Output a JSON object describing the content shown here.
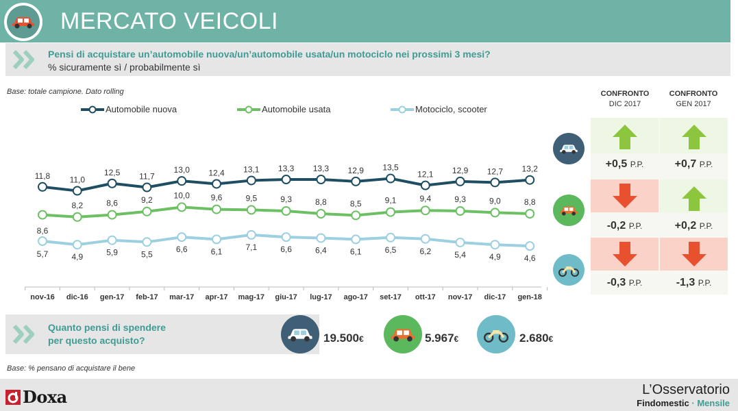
{
  "header": {
    "title": "MERCATO VEICOLI",
    "icon": "car-icon"
  },
  "question": {
    "text": "Pensi di acquistare un’automobile nuova/un’automobile usata/un motociclo nei prossimi 3 mesi?",
    "subtitle": "% sicuramente sì / probabilmente sì"
  },
  "base_note": "Base: totale campione. Dato rolling",
  "legend": [
    "Automobile nuova",
    "Automobile usata",
    "Motociclo, scooter"
  ],
  "colors": {
    "header": "#6fb3a7",
    "accent_text": "#3f9b93",
    "nuova": "#1f4e63",
    "usata": "#6cc063",
    "moto": "#9ccfe0",
    "up": "#8cc63f",
    "down": "#e8512f",
    "up_bg": "#eef6e4",
    "down_bg": "#fad2c8"
  },
  "chart_data": {
    "type": "line",
    "categories": [
      "nov-16",
      "dic-16",
      "gen-17",
      "feb-17",
      "mar-17",
      "apr-17",
      "mag-17",
      "giu-17",
      "lug-17",
      "ago-17",
      "set-17",
      "ott-17",
      "nov-17",
      "dic-17",
      "gen-18"
    ],
    "series": [
      {
        "name": "Automobile nuova",
        "values": [
          11.8,
          11.0,
          12.5,
          11.7,
          13.0,
          12.4,
          13.1,
          13.3,
          13.3,
          12.9,
          13.5,
          12.1,
          12.9,
          12.7,
          13.2
        ],
        "labels": [
          "11,8",
          "11,0",
          "12,5",
          "11,7",
          "13,0",
          "12,4",
          "13,1",
          "13,3",
          "13,3",
          "12,9",
          "13,5",
          "12,1",
          "12,9",
          "12,7",
          "13,2"
        ]
      },
      {
        "name": "Automobile usata",
        "values": [
          8.6,
          8.2,
          8.6,
          9.2,
          10.0,
          9.6,
          9.5,
          9.3,
          8.8,
          8.5,
          9.1,
          9.4,
          9.3,
          9.0,
          8.8
        ],
        "labels": [
          "8,6",
          "8,2",
          "8,6",
          "9,2",
          "10,0",
          "9,6",
          "9,5",
          "9,3",
          "8,8",
          "8,5",
          "9,1",
          "9,4",
          "9,3",
          "9,0",
          "8,8"
        ]
      },
      {
        "name": "Motociclo, scooter",
        "values": [
          5.7,
          4.9,
          5.9,
          5.5,
          6.6,
          6.1,
          7.1,
          6.6,
          6.4,
          6.1,
          6.5,
          6.2,
          5.4,
          4.9,
          4.6
        ],
        "labels": [
          "5,7",
          "4,9",
          "5,9",
          "5,5",
          "6,6",
          "6,1",
          "7,1",
          "6,6",
          "6,4",
          "6,1",
          "6,5",
          "6,2",
          "5,4",
          "4,9",
          "4,6"
        ]
      }
    ]
  },
  "comparison": {
    "headers": [
      {
        "line1": "CONFRONTO",
        "line2": "DIC 2017"
      },
      {
        "line1": "CONFRONTO",
        "line2": "GEN 2017"
      }
    ],
    "rows": [
      {
        "vehicle": "car-icon",
        "cells": [
          {
            "dir": "up",
            "value": "+0,5",
            "unit": "P.P."
          },
          {
            "dir": "up",
            "value": "+0,7",
            "unit": "P.P."
          }
        ]
      },
      {
        "vehicle": "car-icon",
        "cells": [
          {
            "dir": "down",
            "value": "-0,2",
            "unit": "P.P."
          },
          {
            "dir": "up",
            "value": "+0,2",
            "unit": "P.P."
          }
        ]
      },
      {
        "vehicle": "motorbike-icon",
        "cells": [
          {
            "dir": "down",
            "value": "-0,3",
            "unit": "P.P."
          },
          {
            "dir": "down",
            "value": "-1,3",
            "unit": "P.P."
          }
        ]
      }
    ]
  },
  "spend": {
    "question_line1": "Quanto pensi di spendere",
    "question_line2": "per questo acquisto?",
    "items": [
      {
        "icon": "car-icon",
        "amount": "19.500",
        "currency": "€"
      },
      {
        "icon": "car-icon",
        "amount": "5.967",
        "currency": "€"
      },
      {
        "icon": "motorbike-icon",
        "amount": "2.680",
        "currency": "€"
      }
    ]
  },
  "base_note2": "Base: % pensano di acquistare il bene",
  "footer": {
    "brand_left": "Doxa",
    "brand_right_title": "L’Osservatorio",
    "brand_right_sub1": "Findomestic",
    "brand_right_sep": " · ",
    "brand_right_sub2": "Mensile"
  }
}
